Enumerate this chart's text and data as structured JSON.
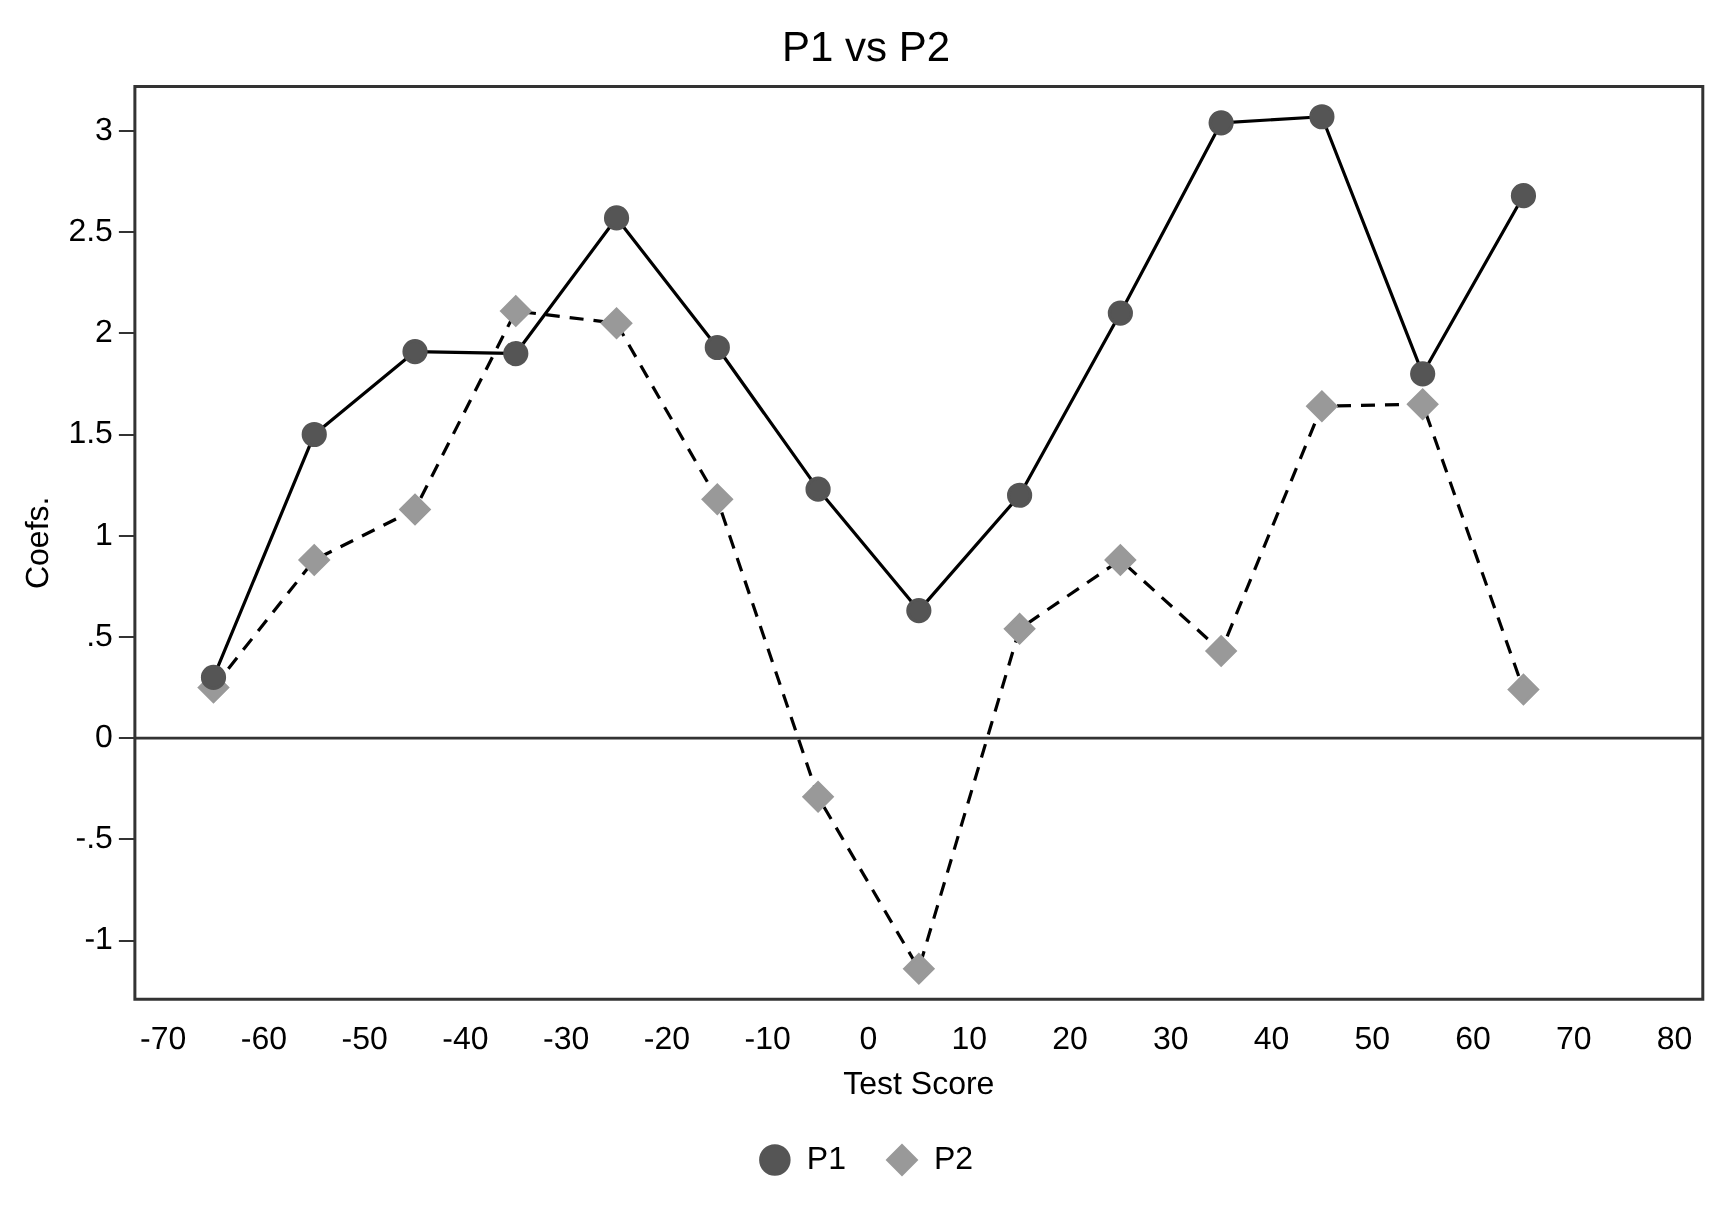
{
  "chart_data": {
    "type": "line",
    "title": "P1 vs P2",
    "xlabel": "Test Score",
    "ylabel": "Coefs.",
    "x": [
      -65,
      -55,
      -45,
      -35,
      -25,
      -15,
      -5,
      5,
      15,
      25,
      35,
      45,
      55,
      65
    ],
    "series": [
      {
        "name": "P1",
        "color": "#555555",
        "marker": "circle",
        "line_style": "solid",
        "values": [
          0.3,
          1.5,
          1.91,
          1.9,
          2.57,
          1.93,
          1.23,
          0.63,
          1.2,
          2.1,
          3.04,
          3.07,
          1.8,
          2.68
        ]
      },
      {
        "name": "P2",
        "color": "#999999",
        "marker": "diamond",
        "line_style": "dashed",
        "values": [
          0.25,
          0.88,
          1.13,
          2.11,
          2.05,
          1.18,
          -0.29,
          -1.14,
          0.54,
          0.88,
          0.43,
          1.64,
          1.65,
          0.24
        ]
      }
    ],
    "xlim": [
      -72.8,
      82.8
    ],
    "xticks": [
      -70,
      -60,
      -50,
      -40,
      -30,
      -20,
      -10,
      0,
      10,
      20,
      30,
      40,
      50,
      60,
      70,
      80
    ],
    "ylim": [
      -1.29,
      3.22
    ],
    "yticks": [
      {
        "value": -1,
        "label": "-1"
      },
      {
        "value": -0.5,
        "label": "-.5"
      },
      0,
      {
        "value": 0.5,
        "label": ".5"
      },
      1,
      {
        "value": 1.5,
        "label": "1.5"
      },
      2,
      {
        "value": 2.5,
        "label": "2.5"
      },
      3
    ],
    "ref_lines": [
      {
        "axis": "y",
        "value": 0,
        "color": "#333333",
        "line_style": "solid"
      }
    ],
    "grid": false,
    "legend": "bottom"
  }
}
